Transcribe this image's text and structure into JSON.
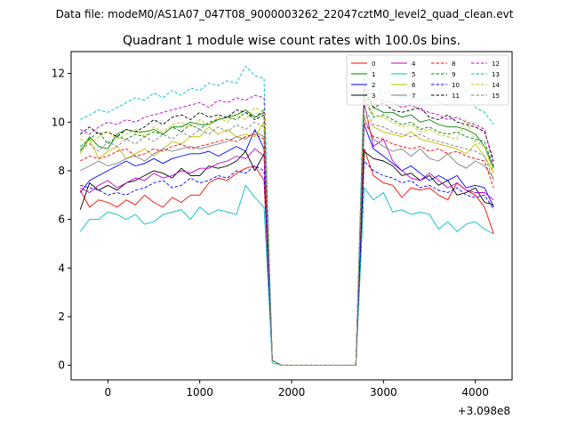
{
  "chart_data": {
    "type": "line",
    "suptitle": "Data file: modeM0/AS1A07_047T08_9000003262_22047cztM0_level2_quad_clean.evt",
    "title": "Quadrant 1 module wise count rates with 100.0s bins.",
    "xlabel": "",
    "ylabel": "",
    "x_offset_label": "+3.098e8",
    "xlim": [
      -400,
      4400
    ],
    "ylim": [
      -0.6,
      12.9
    ],
    "xticks": [
      0,
      1000,
      2000,
      3000,
      4000
    ],
    "xtick_labels": [
      "0",
      "1000",
      "2000",
      "3000",
      "4000"
    ],
    "yticks": [
      0,
      2,
      4,
      6,
      8,
      10,
      12
    ],
    "ytick_labels": [
      "0",
      "2",
      "4",
      "6",
      "8",
      "10",
      "12"
    ],
    "grid": false,
    "legend": {
      "placement": "top-right",
      "columns": 4
    },
    "x": [
      -300,
      -200,
      -100,
      0,
      100,
      200,
      300,
      400,
      500,
      600,
      700,
      800,
      900,
      1000,
      1100,
      1200,
      1300,
      1400,
      1500,
      1600,
      1700,
      1790,
      1890,
      2000,
      2100,
      2200,
      2300,
      2400,
      2500,
      2600,
      2700,
      2790,
      2890,
      3000,
      3100,
      3200,
      3300,
      3400,
      3500,
      3600,
      3700,
      3800,
      3900,
      4000,
      4100,
      4200
    ],
    "series": [
      {
        "name": "0",
        "color": "#ff0000",
        "dash": "solid",
        "values": [
          7.2,
          6.5,
          6.8,
          6.7,
          6.5,
          6.8,
          6.6,
          7.0,
          6.7,
          6.5,
          6.9,
          6.7,
          7.0,
          7.0,
          7.5,
          7.7,
          7.6,
          7.9,
          8.1,
          8.2,
          7.6,
          0.2,
          0.0,
          0.0,
          0.0,
          0.0,
          0.0,
          0.0,
          0.0,
          0.0,
          0.0,
          8.9,
          7.8,
          7.5,
          7.4,
          6.9,
          7.3,
          7.2,
          7.3,
          7.0,
          6.8,
          7.5,
          7.2,
          7.0,
          6.5,
          5.4
        ]
      },
      {
        "name": "1",
        "color": "#008000",
        "dash": "solid",
        "values": [
          8.8,
          9.4,
          9.0,
          8.9,
          9.5,
          9.7,
          9.6,
          9.6,
          9.7,
          9.5,
          9.8,
          9.8,
          10.0,
          9.9,
          9.9,
          10.1,
          10.2,
          10.3,
          10.5,
          10.2,
          10.4,
          0.2,
          0.0,
          0.0,
          0.0,
          0.0,
          0.0,
          0.0,
          0.0,
          0.0,
          0.0,
          11.4,
          10.6,
          10.4,
          10.4,
          10.2,
          10.3,
          10.0,
          10.1,
          9.9,
          9.8,
          9.8,
          9.7,
          9.5,
          9.0,
          8.1
        ]
      },
      {
        "name": "2",
        "color": "#0000ff",
        "dash": "solid",
        "values": [
          7.1,
          7.6,
          7.8,
          8.0,
          8.2,
          8.4,
          8.2,
          8.3,
          8.5,
          8.3,
          8.5,
          8.6,
          8.7,
          8.7,
          8.8,
          8.6,
          8.8,
          9.0,
          8.8,
          9.7,
          8.9,
          0.2,
          0.0,
          0.0,
          0.0,
          0.0,
          0.0,
          0.0,
          0.0,
          0.0,
          0.0,
          9.9,
          8.9,
          8.6,
          8.3,
          8.0,
          8.2,
          7.9,
          7.6,
          7.8,
          7.6,
          7.8,
          7.3,
          7.4,
          7.3,
          6.5
        ]
      },
      {
        "name": "3",
        "color": "#000000",
        "dash": "solid",
        "values": [
          6.4,
          7.5,
          7.2,
          7.4,
          7.2,
          7.5,
          7.6,
          7.8,
          8.0,
          7.9,
          7.7,
          8.1,
          7.8,
          7.8,
          8.2,
          8.1,
          8.2,
          8.4,
          8.8,
          8.0,
          8.7,
          0.2,
          0.0,
          0.0,
          0.0,
          0.0,
          0.0,
          0.0,
          0.0,
          0.0,
          0.0,
          8.8,
          8.5,
          8.4,
          8.2,
          7.8,
          7.9,
          7.6,
          7.8,
          7.4,
          7.6,
          7.0,
          7.1,
          7.3,
          6.7,
          6.6
        ]
      },
      {
        "name": "4",
        "color": "#bf00bf",
        "dash": "solid",
        "values": [
          7.3,
          7.1,
          7.4,
          7.6,
          7.3,
          7.5,
          7.7,
          7.6,
          7.9,
          7.7,
          7.8,
          8.0,
          7.9,
          8.1,
          8.1,
          8.3,
          8.4,
          8.6,
          8.5,
          8.9,
          8.6,
          0.2,
          0.0,
          0.0,
          0.0,
          0.0,
          0.0,
          0.0,
          0.0,
          0.0,
          0.0,
          10.8,
          9.0,
          9.3,
          8.4,
          8.0,
          7.7,
          7.6,
          7.9,
          7.6,
          7.3,
          7.5,
          7.2,
          7.1,
          7.1,
          6.8
        ]
      },
      {
        "name": "5",
        "color": "#00bfbf",
        "dash": "solid",
        "values": [
          5.5,
          6.0,
          6.0,
          6.3,
          6.2,
          6.0,
          6.2,
          5.8,
          5.9,
          6.2,
          6.3,
          6.4,
          6.0,
          6.5,
          6.2,
          6.4,
          6.3,
          6.2,
          7.4,
          6.9,
          6.5,
          0.1,
          0.0,
          0.0,
          0.0,
          0.0,
          0.0,
          0.0,
          0.0,
          0.0,
          0.0,
          7.3,
          6.8,
          7.1,
          6.3,
          6.4,
          6.2,
          6.3,
          6.2,
          5.6,
          5.9,
          5.5,
          5.8,
          5.9,
          5.6,
          5.4
        ]
      },
      {
        "name": "6",
        "color": "#bfbf00",
        "dash": "solid",
        "values": [
          8.7,
          9.3,
          8.5,
          8.8,
          9.0,
          8.5,
          8.7,
          8.9,
          8.6,
          8.9,
          9.2,
          9.1,
          9.4,
          9.4,
          9.8,
          9.5,
          9.7,
          9.4,
          9.5,
          9.4,
          10.0,
          0.2,
          0.0,
          0.0,
          0.0,
          0.0,
          0.0,
          0.0,
          0.0,
          0.0,
          0.0,
          10.3,
          9.8,
          9.6,
          9.5,
          9.4,
          9.6,
          9.3,
          9.2,
          9.1,
          9.0,
          8.9,
          8.7,
          9.1,
          8.6,
          7.9
        ]
      },
      {
        "name": "7",
        "color": "#808080",
        "dash": "solid",
        "values": [
          8.0,
          8.2,
          8.4,
          8.2,
          8.3,
          8.5,
          8.6,
          8.4,
          8.7,
          8.9,
          8.8,
          8.9,
          9.0,
          8.9,
          9.0,
          9.1,
          9.2,
          9.4,
          9.3,
          9.6,
          9.4,
          0.2,
          0.0,
          0.0,
          0.0,
          0.0,
          0.0,
          0.0,
          0.0,
          0.0,
          0.0,
          10.2,
          9.3,
          9.0,
          8.8,
          8.9,
          8.6,
          8.9,
          8.5,
          8.4,
          8.7,
          8.3,
          8.1,
          8.4,
          8.2,
          7.7
        ]
      },
      {
        "name": "8",
        "color": "#ff0000",
        "dash": "dashed",
        "values": [
          8.4,
          8.6,
          8.5,
          8.6,
          8.8,
          8.9,
          8.6,
          8.7,
          8.9,
          8.8,
          9.0,
          9.1,
          8.9,
          9.0,
          9.1,
          9.2,
          9.3,
          9.2,
          9.4,
          9.5,
          9.3,
          0.2,
          0.0,
          0.0,
          0.0,
          0.0,
          0.0,
          0.0,
          0.0,
          0.0,
          0.0,
          10.0,
          9.4,
          9.3,
          9.1,
          9.0,
          8.9,
          9.0,
          8.8,
          8.9,
          8.7,
          8.8,
          8.6,
          8.5,
          8.4,
          7.3
        ]
      },
      {
        "name": "9",
        "color": "#008000",
        "dash": "dashed",
        "values": [
          9.0,
          9.3,
          9.6,
          9.1,
          9.4,
          9.3,
          9.5,
          9.4,
          9.6,
          9.5,
          9.8,
          9.6,
          9.9,
          9.7,
          10.0,
          10.1,
          10.2,
          10.1,
          10.4,
          10.2,
          10.5,
          0.2,
          0.0,
          0.0,
          0.0,
          0.0,
          0.0,
          0.0,
          0.0,
          0.0,
          0.0,
          11.0,
          10.2,
          10.3,
          10.1,
          9.9,
          10.0,
          9.7,
          9.8,
          9.6,
          9.5,
          9.6,
          9.4,
          9.3,
          9.2,
          8.1
        ]
      },
      {
        "name": "10",
        "color": "#0000ff",
        "dash": "dashed",
        "values": [
          7.4,
          7.3,
          7.2,
          7.0,
          7.1,
          7.0,
          7.2,
          7.3,
          7.5,
          7.6,
          7.3,
          7.4,
          7.7,
          7.5,
          7.6,
          7.8,
          7.7,
          8.0,
          7.9,
          8.2,
          8.0,
          0.2,
          0.0,
          0.0,
          0.0,
          0.0,
          0.0,
          0.0,
          0.0,
          0.0,
          0.0,
          8.4,
          8.0,
          7.8,
          7.7,
          7.5,
          7.6,
          7.3,
          7.4,
          7.2,
          7.1,
          7.3,
          7.0,
          6.9,
          7.0,
          6.4
        ]
      },
      {
        "name": "11",
        "color": "#000000",
        "dash": "dashed",
        "values": [
          9.5,
          9.8,
          9.5,
          9.6,
          9.4,
          9.7,
          9.6,
          9.8,
          10.1,
          9.9,
          10.2,
          10.3,
          10.1,
          10.4,
          10.2,
          10.3,
          10.2,
          10.5,
          10.4,
          10.1,
          10.3,
          0.2,
          0.0,
          0.0,
          0.0,
          0.0,
          0.0,
          0.0,
          0.0,
          0.0,
          0.0,
          11.2,
          10.6,
          10.8,
          10.5,
          10.4,
          10.5,
          10.6,
          10.2,
          10.1,
          10.3,
          10.0,
          9.9,
          9.8,
          9.6,
          8.4
        ]
      },
      {
        "name": "12",
        "color": "#bf00bf",
        "dash": "dashed",
        "values": [
          9.7,
          9.5,
          9.8,
          10.0,
          9.9,
          10.1,
          10.0,
          10.2,
          10.3,
          10.4,
          10.5,
          10.6,
          10.7,
          10.8,
          10.6,
          10.9,
          10.8,
          11.0,
          10.9,
          11.1,
          11.0,
          0.2,
          0.0,
          0.0,
          0.0,
          0.0,
          0.0,
          0.0,
          0.0,
          0.0,
          0.0,
          11.5,
          11.0,
          10.9,
          10.8,
          10.6,
          10.7,
          10.5,
          10.4,
          10.3,
          10.1,
          10.2,
          10.0,
          9.9,
          9.7,
          8.2
        ]
      },
      {
        "name": "13",
        "color": "#00bfbf",
        "dash": "dashed",
        "values": [
          10.1,
          10.3,
          10.5,
          10.4,
          10.6,
          10.8,
          11.0,
          10.9,
          11.2,
          11.0,
          11.3,
          11.1,
          11.4,
          11.3,
          11.6,
          11.5,
          11.7,
          11.6,
          12.3,
          11.9,
          11.8,
          0.2,
          0.0,
          0.0,
          0.0,
          0.0,
          0.0,
          0.0,
          0.0,
          0.0,
          0.0,
          12.1,
          11.5,
          11.2,
          11.3,
          11.0,
          11.1,
          10.9,
          11.0,
          10.8,
          10.7,
          10.9,
          11.4,
          10.6,
          10.4,
          9.9
        ]
      },
      {
        "name": "14",
        "color": "#bfbf00",
        "dash": "dashed",
        "values": [
          9.3,
          9.1,
          9.4,
          9.6,
          9.3,
          9.5,
          9.7,
          9.4,
          9.8,
          9.6,
          9.9,
          10.0,
          9.8,
          10.1,
          9.9,
          10.2,
          10.0,
          10.3,
          10.1,
          10.6,
          10.4,
          0.2,
          0.0,
          0.0,
          0.0,
          0.0,
          0.0,
          0.0,
          0.0,
          0.0,
          0.0,
          11.1,
          10.3,
          10.2,
          10.0,
          9.8,
          9.9,
          9.6,
          9.7,
          9.5,
          9.4,
          9.3,
          10.1,
          9.2,
          9.0,
          7.9
        ]
      },
      {
        "name": "15",
        "color": "#808080",
        "dash": "dashed",
        "values": [
          8.9,
          9.1,
          8.8,
          9.2,
          9.0,
          9.3,
          9.1,
          9.4,
          9.2,
          9.5,
          9.3,
          9.6,
          9.4,
          9.7,
          9.5,
          9.8,
          9.6,
          9.9,
          9.7,
          10.0,
          9.8,
          0.2,
          0.0,
          0.0,
          0.0,
          0.0,
          0.0,
          0.0,
          0.0,
          0.0,
          0.0,
          10.6,
          9.9,
          9.8,
          9.6,
          9.5,
          9.4,
          9.5,
          9.3,
          9.2,
          9.1,
          9.0,
          8.9,
          8.8,
          8.6,
          7.6
        ]
      }
    ]
  }
}
